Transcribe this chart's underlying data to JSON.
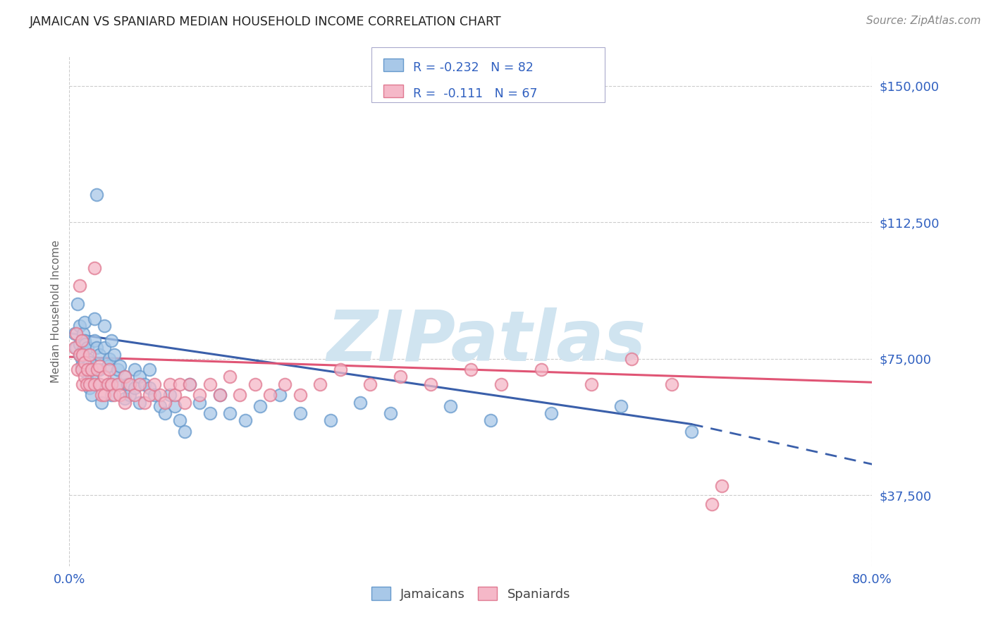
{
  "title": "JAMAICAN VS SPANIARD MEDIAN HOUSEHOLD INCOME CORRELATION CHART",
  "source": "Source: ZipAtlas.com",
  "ylabel": "Median Household Income",
  "yticks": [
    37500,
    75000,
    112500,
    150000
  ],
  "ytick_labels": [
    "$37,500",
    "$75,000",
    "$112,500",
    "$150,000"
  ],
  "xmin": 0.0,
  "xmax": 0.8,
  "ymin": 18000,
  "ymax": 158000,
  "watermark": "ZIPatlas",
  "jamaican_color": "#a8c8e8",
  "jamaican_edge": "#6699cc",
  "spaniard_color": "#f5b8c8",
  "spaniard_edge": "#e07890",
  "trend_jamaican_color": "#3a5faa",
  "trend_spaniard_color": "#e05575",
  "title_color": "#222222",
  "axis_label_color": "#3060c0",
  "source_color": "#888888",
  "background_color": "#ffffff",
  "grid_color": "#cccccc",
  "watermark_color": "#d0e4f0",
  "jamaican_x": [
    0.005,
    0.007,
    0.008,
    0.01,
    0.01,
    0.01,
    0.012,
    0.012,
    0.012,
    0.013,
    0.013,
    0.014,
    0.014,
    0.015,
    0.015,
    0.015,
    0.016,
    0.016,
    0.017,
    0.018,
    0.018,
    0.018,
    0.02,
    0.02,
    0.02,
    0.022,
    0.022,
    0.025,
    0.025,
    0.027,
    0.027,
    0.03,
    0.03,
    0.03,
    0.032,
    0.035,
    0.035,
    0.038,
    0.04,
    0.04,
    0.042,
    0.042,
    0.045,
    0.045,
    0.048,
    0.05,
    0.05,
    0.055,
    0.055,
    0.058,
    0.06,
    0.065,
    0.065,
    0.07,
    0.07,
    0.075,
    0.08,
    0.08,
    0.085,
    0.09,
    0.095,
    0.1,
    0.105,
    0.11,
    0.115,
    0.12,
    0.13,
    0.14,
    0.15,
    0.16,
    0.175,
    0.19,
    0.21,
    0.23,
    0.26,
    0.29,
    0.32,
    0.38,
    0.42,
    0.48,
    0.55,
    0.62
  ],
  "jamaican_y": [
    82000,
    78000,
    90000,
    76000,
    79000,
    84000,
    80000,
    75000,
    73000,
    77000,
    72000,
    76000,
    82000,
    73000,
    80000,
    85000,
    74000,
    79000,
    71000,
    75000,
    69000,
    78000,
    72000,
    67000,
    74000,
    70000,
    65000,
    86000,
    80000,
    78000,
    120000,
    76000,
    72000,
    68000,
    63000,
    84000,
    78000,
    73000,
    75000,
    68000,
    80000,
    65000,
    76000,
    70000,
    72000,
    73000,
    68000,
    70000,
    64000,
    68000,
    65000,
    72000,
    67000,
    70000,
    63000,
    68000,
    72000,
    67000,
    65000,
    62000,
    60000,
    65000,
    62000,
    58000,
    55000,
    68000,
    63000,
    60000,
    65000,
    60000,
    58000,
    62000,
    65000,
    60000,
    58000,
    63000,
    60000,
    62000,
    58000,
    60000,
    62000,
    55000
  ],
  "spaniard_x": [
    0.005,
    0.007,
    0.008,
    0.01,
    0.01,
    0.012,
    0.012,
    0.013,
    0.013,
    0.015,
    0.015,
    0.017,
    0.018,
    0.02,
    0.02,
    0.022,
    0.025,
    0.025,
    0.028,
    0.03,
    0.03,
    0.032,
    0.035,
    0.035,
    0.038,
    0.04,
    0.042,
    0.045,
    0.048,
    0.05,
    0.055,
    0.055,
    0.06,
    0.065,
    0.07,
    0.075,
    0.08,
    0.085,
    0.09,
    0.095,
    0.1,
    0.105,
    0.11,
    0.115,
    0.12,
    0.13,
    0.14,
    0.15,
    0.16,
    0.17,
    0.185,
    0.2,
    0.215,
    0.23,
    0.25,
    0.27,
    0.3,
    0.33,
    0.36,
    0.4,
    0.43,
    0.47,
    0.52,
    0.56,
    0.6,
    0.64,
    0.65
  ],
  "spaniard_y": [
    78000,
    82000,
    72000,
    95000,
    76000,
    80000,
    72000,
    76000,
    68000,
    74000,
    70000,
    68000,
    72000,
    76000,
    68000,
    72000,
    100000,
    68000,
    72000,
    68000,
    73000,
    65000,
    70000,
    65000,
    68000,
    72000,
    68000,
    65000,
    68000,
    65000,
    70000,
    63000,
    68000,
    65000,
    68000,
    63000,
    65000,
    68000,
    65000,
    63000,
    68000,
    65000,
    68000,
    63000,
    68000,
    65000,
    68000,
    65000,
    70000,
    65000,
    68000,
    65000,
    68000,
    65000,
    68000,
    72000,
    68000,
    70000,
    68000,
    72000,
    68000,
    72000,
    68000,
    75000,
    68000,
    35000,
    40000
  ],
  "trend_blue_x0": 0.0,
  "trend_blue_y0": 82000,
  "trend_blue_x1": 0.62,
  "trend_blue_y1": 57000,
  "trend_blue_dash_x1": 0.8,
  "trend_blue_dash_y1": 46000,
  "trend_pink_x0": 0.0,
  "trend_pink_y0": 75500,
  "trend_pink_x1": 0.8,
  "trend_pink_y1": 68500
}
